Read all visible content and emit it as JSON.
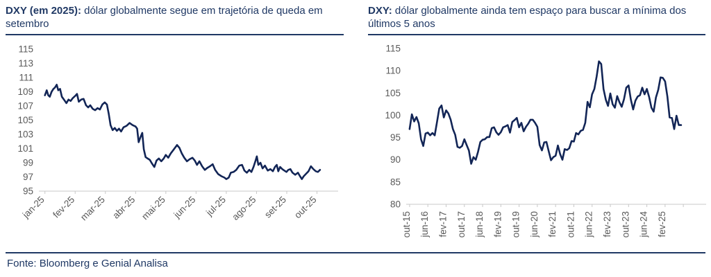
{
  "header": {
    "left_title_bold": "DXY (em 2025):",
    "left_title_rest": " dólar globalmente segue em trajetória de queda em setembro",
    "right_title_bold": "DXY:",
    "right_title_rest": " dólar globalmente ainda tem espaço para buscar a mínima dos últimos 5 anos"
  },
  "footer": {
    "source": "Fonte: Bloomberg e Genial Analisa"
  },
  "colors": {
    "line": "#122556",
    "title": "#1F3864",
    "rule": "#1F3864",
    "axis": "#C8C8C8",
    "tick_label": "#595959",
    "background": "#FFFFFF"
  },
  "chart_data": [
    {
      "type": "line",
      "title": "DXY (em 2025): dólar globalmente segue em trajetória de queda em setembro",
      "series_name": "DXY",
      "xlabel": "",
      "ylabel": "",
      "grid": false,
      "legend": "none",
      "ylim": [
        95,
        115
      ],
      "xlim": [
        -0.2,
        9.7
      ],
      "yticks": [
        95,
        97,
        99,
        101,
        103,
        105,
        107,
        109,
        111,
        113,
        115
      ],
      "xticks": [
        {
          "x": 0,
          "label": "jan-25"
        },
        {
          "x": 1,
          "label": "fev-25"
        },
        {
          "x": 2,
          "label": "mar-25"
        },
        {
          "x": 3,
          "label": "abr-25"
        },
        {
          "x": 4,
          "label": "mai-25"
        },
        {
          "x": 5,
          "label": "jun-25"
        },
        {
          "x": 6,
          "label": "jul-25"
        },
        {
          "x": 7,
          "label": "ago-25"
        },
        {
          "x": 8,
          "label": "set-25"
        },
        {
          "x": 9,
          "label": "out-25"
        }
      ],
      "x_unit": "months since jan-2025 (fractional = day of month)",
      "points": [
        [
          0.0,
          108.5
        ],
        [
          0.06,
          109.2
        ],
        [
          0.11,
          108.5
        ],
        [
          0.16,
          108.3
        ],
        [
          0.22,
          109.0
        ],
        [
          0.28,
          109.4
        ],
        [
          0.33,
          109.6
        ],
        [
          0.39,
          110.0
        ],
        [
          0.44,
          109.2
        ],
        [
          0.5,
          109.4
        ],
        [
          0.56,
          108.3
        ],
        [
          0.63,
          107.9
        ],
        [
          0.71,
          107.4
        ],
        [
          0.78,
          107.9
        ],
        [
          0.85,
          107.7
        ],
        [
          0.92,
          108.1
        ],
        [
          1.0,
          108.4
        ],
        [
          1.06,
          108.7
        ],
        [
          1.12,
          107.6
        ],
        [
          1.2,
          107.9
        ],
        [
          1.28,
          108.0
        ],
        [
          1.36,
          107.1
        ],
        [
          1.43,
          106.8
        ],
        [
          1.5,
          107.1
        ],
        [
          1.58,
          106.6
        ],
        [
          1.66,
          106.4
        ],
        [
          1.74,
          106.7
        ],
        [
          1.82,
          106.5
        ],
        [
          1.9,
          107.2
        ],
        [
          1.98,
          107.5
        ],
        [
          2.05,
          107.2
        ],
        [
          2.11,
          105.9
        ],
        [
          2.17,
          104.3
        ],
        [
          2.24,
          103.6
        ],
        [
          2.31,
          103.9
        ],
        [
          2.38,
          103.5
        ],
        [
          2.45,
          103.8
        ],
        [
          2.52,
          103.4
        ],
        [
          2.6,
          104.0
        ],
        [
          2.7,
          104.2
        ],
        [
          2.8,
          104.6
        ],
        [
          2.9,
          104.3
        ],
        [
          3.0,
          104.1
        ],
        [
          3.05,
          103.8
        ],
        [
          3.1,
          101.9
        ],
        [
          3.16,
          102.6
        ],
        [
          3.22,
          103.2
        ],
        [
          3.27,
          100.9
        ],
        [
          3.33,
          99.8
        ],
        [
          3.4,
          99.6
        ],
        [
          3.47,
          99.4
        ],
        [
          3.54,
          98.9
        ],
        [
          3.62,
          98.4
        ],
        [
          3.69,
          99.3
        ],
        [
          3.77,
          99.6
        ],
        [
          3.85,
          99.2
        ],
        [
          3.93,
          99.6
        ],
        [
          4.0,
          100.1
        ],
        [
          4.08,
          99.7
        ],
        [
          4.16,
          100.3
        ],
        [
          4.25,
          100.8
        ],
        [
          4.37,
          101.5
        ],
        [
          4.45,
          101.1
        ],
        [
          4.53,
          100.3
        ],
        [
          4.61,
          99.7
        ],
        [
          4.7,
          99.2
        ],
        [
          4.79,
          99.5
        ],
        [
          4.88,
          99.7
        ],
        [
          4.96,
          99.3
        ],
        [
          5.03,
          98.7
        ],
        [
          5.11,
          99.2
        ],
        [
          5.2,
          98.5
        ],
        [
          5.29,
          98.0
        ],
        [
          5.38,
          98.3
        ],
        [
          5.46,
          98.5
        ],
        [
          5.55,
          98.8
        ],
        [
          5.63,
          98.0
        ],
        [
          5.73,
          97.4
        ],
        [
          5.84,
          97.1
        ],
        [
          5.94,
          96.9
        ],
        [
          6.0,
          96.7
        ],
        [
          6.08,
          96.9
        ],
        [
          6.15,
          97.6
        ],
        [
          6.24,
          97.7
        ],
        [
          6.33,
          98.0
        ],
        [
          6.43,
          98.6
        ],
        [
          6.52,
          98.7
        ],
        [
          6.6,
          97.9
        ],
        [
          6.68,
          97.6
        ],
        [
          6.76,
          98.0
        ],
        [
          6.83,
          97.7
        ],
        [
          6.9,
          98.4
        ],
        [
          6.97,
          99.3
        ],
        [
          7.01,
          99.9
        ],
        [
          7.06,
          98.7
        ],
        [
          7.13,
          99.0
        ],
        [
          7.2,
          98.2
        ],
        [
          7.28,
          98.6
        ],
        [
          7.37,
          97.9
        ],
        [
          7.46,
          98.1
        ],
        [
          7.54,
          97.8
        ],
        [
          7.61,
          98.4
        ],
        [
          7.67,
          98.7
        ],
        [
          7.72,
          97.8
        ],
        [
          7.78,
          98.4
        ],
        [
          7.85,
          98.1
        ],
        [
          7.92,
          97.9
        ],
        [
          7.99,
          97.7
        ],
        [
          8.05,
          98.0
        ],
        [
          8.12,
          98.1
        ],
        [
          8.19,
          97.6
        ],
        [
          8.28,
          97.3
        ],
        [
          8.37,
          97.6
        ],
        [
          8.44,
          97.1
        ],
        [
          8.5,
          96.7
        ],
        [
          8.56,
          97.1
        ],
        [
          8.63,
          97.4
        ],
        [
          8.72,
          97.8
        ],
        [
          8.8,
          98.5
        ],
        [
          8.88,
          98.1
        ],
        [
          8.96,
          97.8
        ],
        [
          9.03,
          97.7
        ],
        [
          9.1,
          98.0
        ]
      ]
    },
    {
      "type": "line",
      "title": "DXY: dólar globalmente ainda tem espaço para buscar a mínima dos últimos 5 anos",
      "series_name": "DXY",
      "xlabel": "",
      "ylabel": "",
      "grid": false,
      "legend": "none",
      "ylim": [
        80,
        115
      ],
      "xlim": [
        -1.5,
        130
      ],
      "yticks": [
        80,
        85,
        90,
        95,
        100,
        105,
        110,
        115
      ],
      "xticks": [
        {
          "x": 0,
          "label": "out-15"
        },
        {
          "x": 8,
          "label": "jun-16"
        },
        {
          "x": 16,
          "label": "fev-17"
        },
        {
          "x": 24,
          "label": "out-17"
        },
        {
          "x": 32,
          "label": "jun-18"
        },
        {
          "x": 40,
          "label": "fev-19"
        },
        {
          "x": 48,
          "label": "out-19"
        },
        {
          "x": 56,
          "label": "jun-20"
        },
        {
          "x": 64,
          "label": "fev-21"
        },
        {
          "x": 72,
          "label": "out-21"
        },
        {
          "x": 80,
          "label": "jun-22"
        },
        {
          "x": 88,
          "label": "fev-23"
        },
        {
          "x": 96,
          "label": "out-23"
        },
        {
          "x": 104,
          "label": "jun-24"
        },
        {
          "x": 112,
          "label": "fev-25"
        },
        {
          "x": 120,
          "label": ""
        }
      ],
      "x_unit": "months since out-2015 (monthly values out-15 to set-25)",
      "values": [
        96.9,
        100.2,
        98.6,
        99.6,
        98.2,
        94.6,
        93.1,
        95.9,
        96.1,
        95.5,
        96.0,
        95.5,
        98.4,
        101.5,
        102.2,
        99.5,
        101.1,
        100.4,
        99.0,
        96.9,
        95.6,
        92.9,
        92.7,
        93.1,
        94.6,
        93.3,
        92.1,
        89.1,
        90.6,
        90.0,
        91.8,
        94.0,
        94.5,
        94.6,
        95.1,
        95.1,
        97.1,
        97.3,
        96.2,
        95.6,
        96.2,
        97.3,
        97.5,
        97.8,
        96.1,
        98.5,
        98.9,
        99.4,
        97.3,
        98.3,
        96.4,
        97.4,
        98.1,
        99.0,
        99.0,
        98.3,
        97.4,
        93.3,
        92.1,
        93.9,
        94.0,
        91.9,
        89.9,
        90.6,
        90.9,
        93.2,
        91.3,
        90.0,
        92.4,
        92.2,
        92.6,
        94.2,
        94.1,
        96.0,
        95.7,
        96.5,
        96.7,
        98.3,
        103.0,
        101.8,
        104.7,
        105.9,
        108.7,
        112.1,
        111.5,
        105.9,
        103.5,
        102.1,
        104.9,
        102.5,
        101.7,
        104.3,
        102.9,
        101.9,
        103.6,
        106.2,
        106.7,
        103.5,
        101.3,
        103.3,
        104.2,
        104.5,
        106.2,
        104.7,
        105.9,
        104.1,
        101.7,
        100.8,
        104.0,
        105.7,
        108.5,
        108.4,
        107.6,
        104.2,
        99.5,
        99.4,
        96.9,
        99.9,
        97.8,
        97.8
      ]
    }
  ]
}
